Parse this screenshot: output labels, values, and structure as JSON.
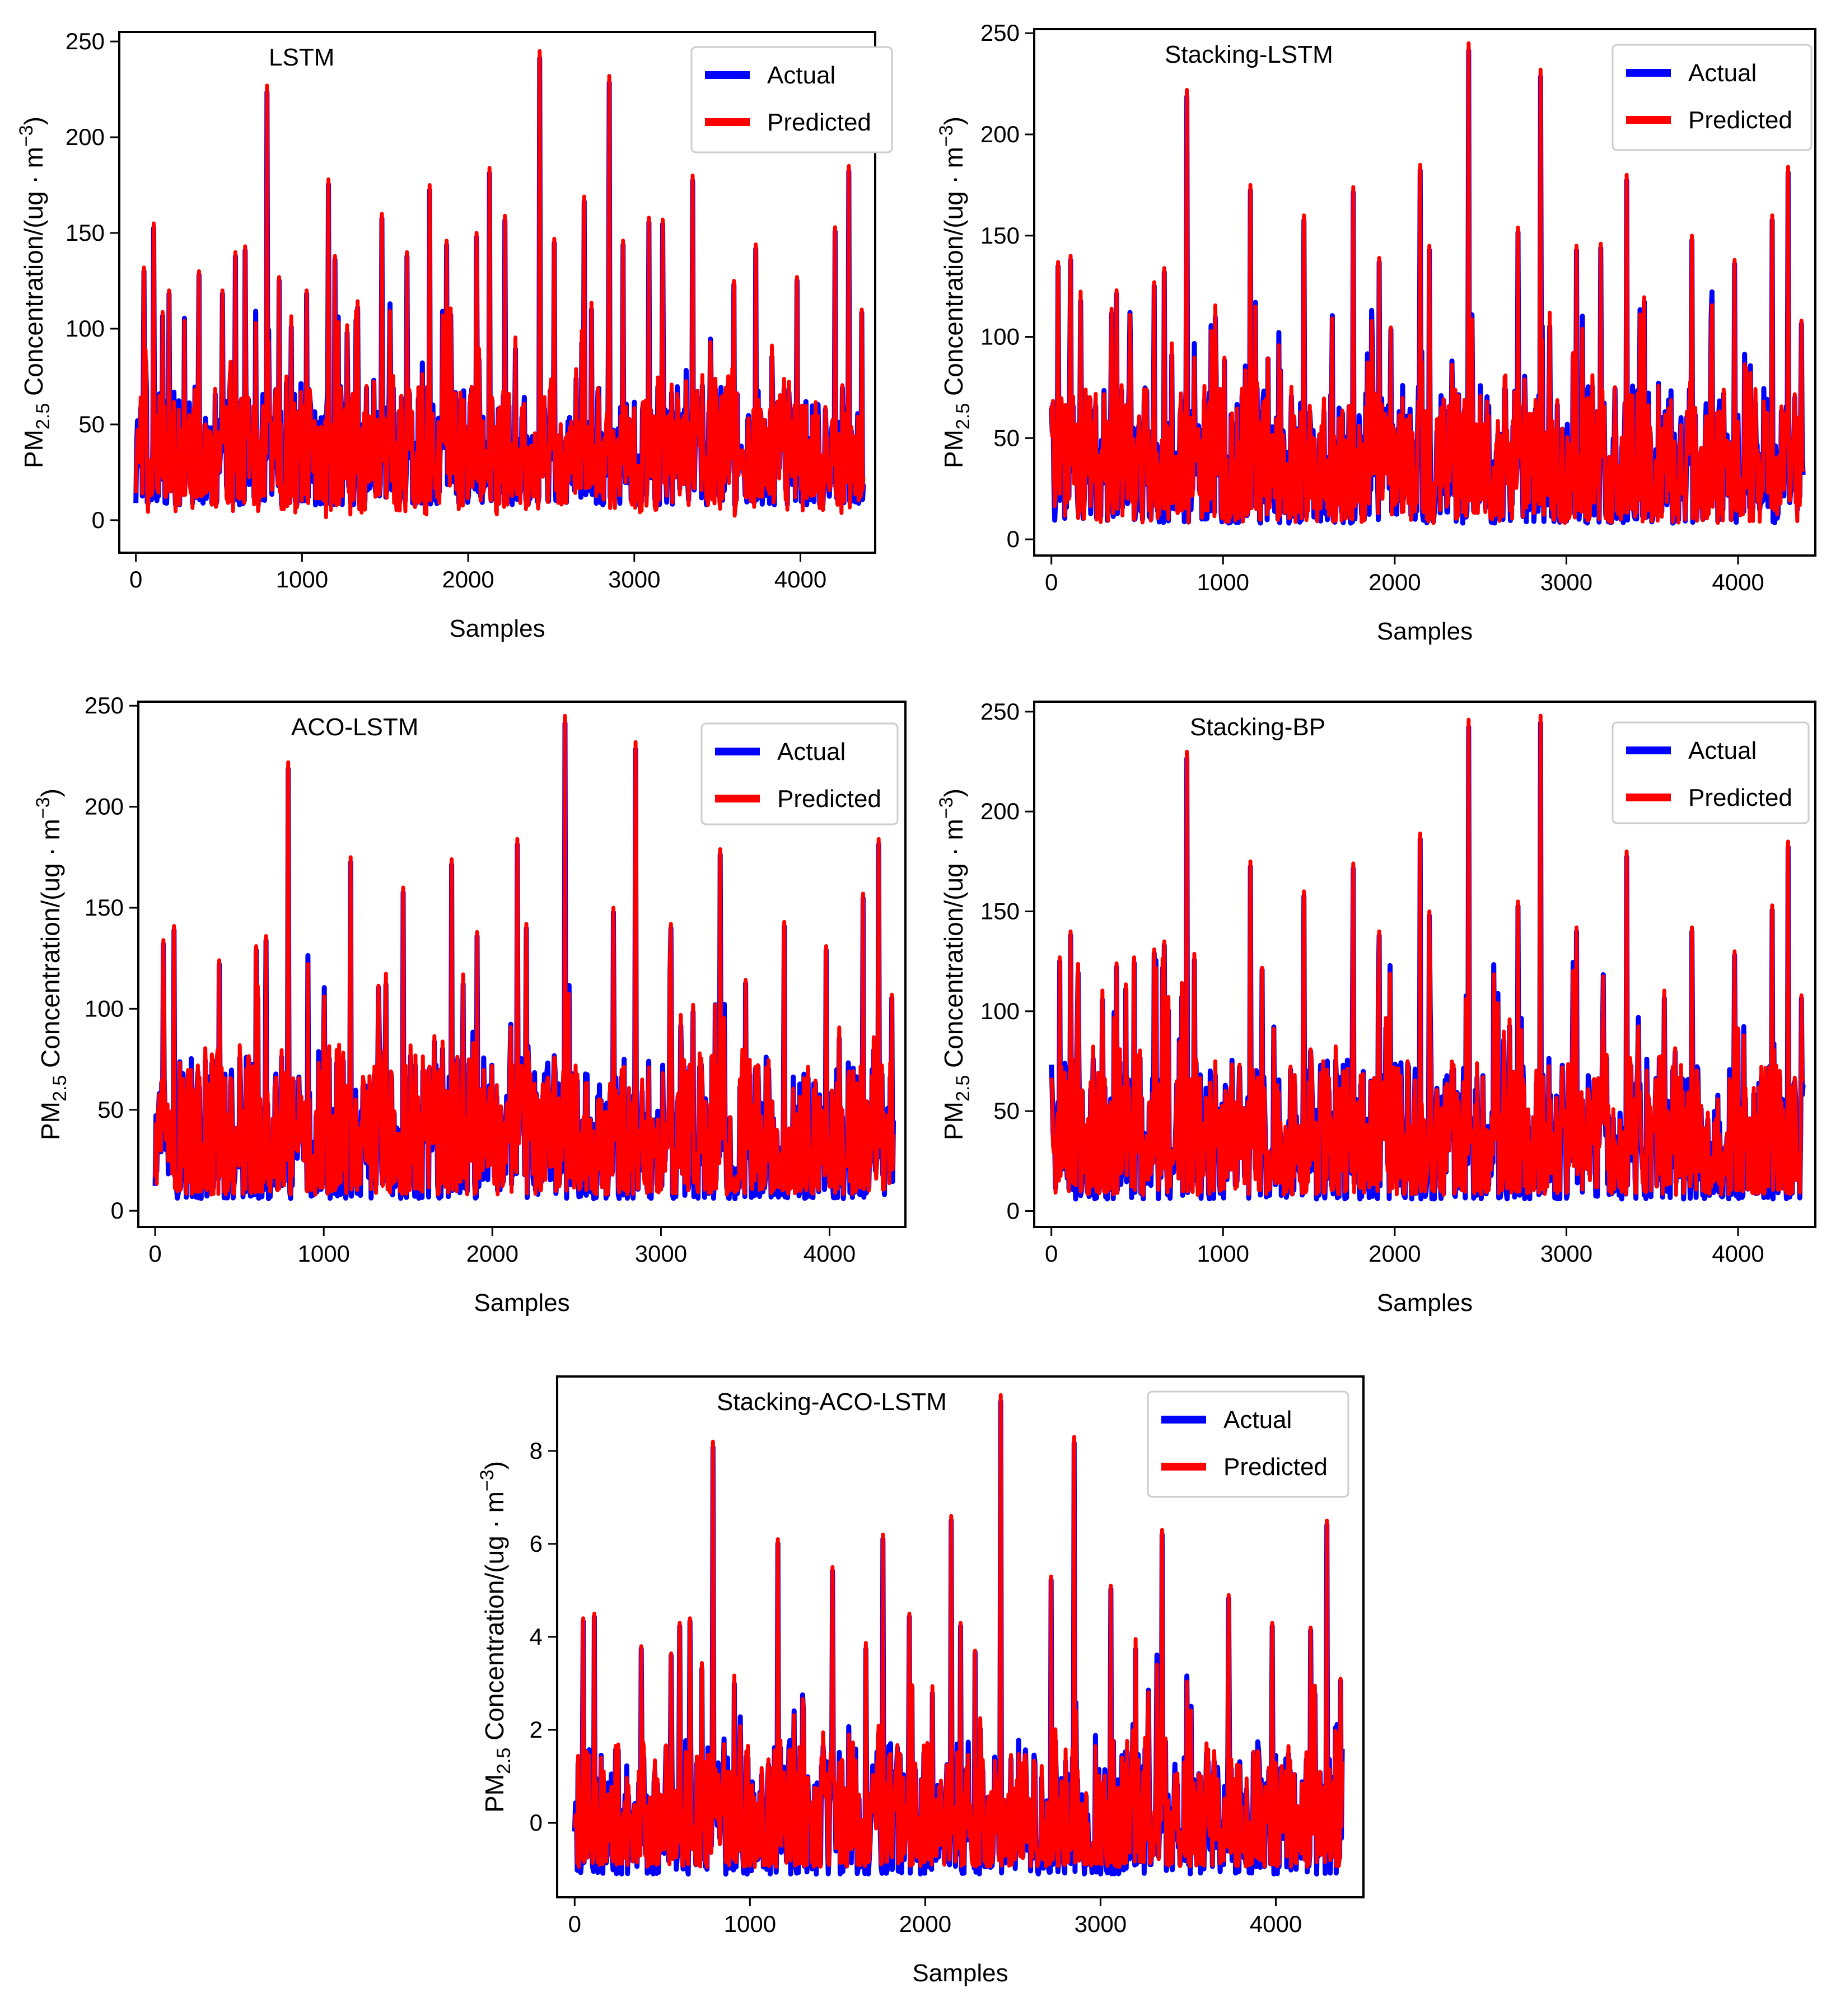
{
  "figure": {
    "xlabel": "Samples",
    "ylabel_prefix": "PM",
    "ylabel_subscript": "2.5",
    "ylabel_middle": " Concentration/(ug · m",
    "ylabel_superscript": "−3",
    "ylabel_suffix": ")"
  },
  "colors": {
    "actual": "#0000ff",
    "predicted": "#ff0000"
  },
  "chart_data": [
    {
      "type": "line",
      "title": "LSTM",
      "xlabel": "Samples",
      "ylabel": "PM2.5 Concentration/(ug · m−3)",
      "xlim": [
        -100,
        4450
      ],
      "ylim": [
        -17,
        255
      ],
      "xticks": [
        0,
        1000,
        2000,
        3000,
        4000
      ],
      "yticks": [
        0,
        50,
        100,
        150,
        200,
        250
      ],
      "legend": [
        "Actual",
        "Predicted"
      ],
      "legend_loc": "top-right",
      "n_samples": 4380,
      "baseline": {
        "low": 8,
        "mid": 30,
        "high": 60
      },
      "pred_low": 0,
      "peaks": [
        [
          50,
          132
        ],
        [
          105,
          155
        ],
        [
          200,
          120
        ],
        [
          380,
          130
        ],
        [
          520,
          120
        ],
        [
          600,
          140
        ],
        [
          660,
          143
        ],
        [
          790,
          227
        ],
        [
          860,
          127
        ],
        [
          1030,
          120
        ],
        [
          1160,
          178
        ],
        [
          1200,
          138
        ],
        [
          1480,
          160
        ],
        [
          1630,
          140
        ],
        [
          1770,
          175
        ],
        [
          1870,
          146
        ],
        [
          2050,
          150
        ],
        [
          2130,
          184
        ],
        [
          2220,
          159
        ],
        [
          2430,
          245
        ],
        [
          2520,
          147
        ],
        [
          2700,
          169
        ],
        [
          2850,
          232
        ],
        [
          2930,
          146
        ],
        [
          3090,
          158
        ],
        [
          3170,
          157
        ],
        [
          3350,
          180
        ],
        [
          3600,
          125
        ],
        [
          3730,
          144
        ],
        [
          3980,
          127
        ],
        [
          4210,
          153
        ],
        [
          4290,
          185
        ],
        [
          4370,
          110
        ]
      ],
      "series": [
        {
          "name": "Actual",
          "values_summary": "hourly PM2.5 observations, range approx 3 to 245"
        },
        {
          "name": "Predicted",
          "values_summary": "model predictions closely tracking actual, range approx -5 to 245"
        }
      ]
    },
    {
      "type": "line",
      "title": "Stacking-LSTM",
      "xlabel": "Samples",
      "ylabel": "PM2.5 Concentration/(ug · m−3)",
      "xlim": [
        -100,
        4450
      ],
      "ylim": [
        -8,
        252
      ],
      "xticks": [
        0,
        1000,
        2000,
        3000,
        4000
      ],
      "yticks": [
        0,
        50,
        100,
        150,
        200,
        250
      ],
      "legend": [
        "Actual",
        "Predicted"
      ],
      "legend_loc": "top-right",
      "n_samples": 4380,
      "baseline": {
        "low": 8,
        "mid": 32,
        "high": 65
      },
      "pred_low": 8,
      "peaks": [
        [
          40,
          137
        ],
        [
          110,
          140
        ],
        [
          380,
          123
        ],
        [
          600,
          127
        ],
        [
          660,
          134
        ],
        [
          790,
          222
        ],
        [
          1160,
          175
        ],
        [
          1470,
          160
        ],
        [
          1760,
          174
        ],
        [
          1910,
          139
        ],
        [
          2150,
          185
        ],
        [
          2200,
          145
        ],
        [
          2430,
          245
        ],
        [
          2720,
          154
        ],
        [
          2850,
          232
        ],
        [
          3060,
          145
        ],
        [
          3200,
          146
        ],
        [
          3350,
          180
        ],
        [
          3730,
          150
        ],
        [
          3980,
          138
        ],
        [
          4200,
          160
        ],
        [
          4290,
          184
        ],
        [
          4370,
          108
        ]
      ],
      "series": [
        {
          "name": "Actual",
          "values_summary": "hourly PM2.5 observations, range approx 3 to 245"
        },
        {
          "name": "Predicted",
          "values_summary": "model predictions closely tracking actual"
        }
      ]
    },
    {
      "type": "line",
      "title": "ACO-LSTM",
      "xlabel": "Samples",
      "ylabel": "PM2.5 Concentration/(ug · m−3)",
      "xlim": [
        -100,
        4450
      ],
      "ylim": [
        -8,
        252
      ],
      "xticks": [
        0,
        1000,
        2000,
        3000,
        4000
      ],
      "yticks": [
        0,
        50,
        100,
        150,
        200,
        250
      ],
      "legend": [
        "Actual",
        "Predicted"
      ],
      "legend_loc": "top-right",
      "n_samples": 4380,
      "baseline": {
        "low": 6,
        "mid": 32,
        "high": 65
      },
      "pred_low": 8,
      "peaks": [
        [
          50,
          134
        ],
        [
          110,
          141
        ],
        [
          380,
          124
        ],
        [
          600,
          131
        ],
        [
          660,
          136
        ],
        [
          790,
          222
        ],
        [
          1160,
          175
        ],
        [
          1470,
          160
        ],
        [
          1760,
          174
        ],
        [
          1910,
          138
        ],
        [
          2150,
          184
        ],
        [
          2200,
          142
        ],
        [
          2430,
          245
        ],
        [
          2720,
          150
        ],
        [
          2850,
          232
        ],
        [
          3060,
          142
        ],
        [
          3350,
          179
        ],
        [
          3730,
          143
        ],
        [
          3980,
          131
        ],
        [
          4200,
          157
        ],
        [
          4290,
          184
        ],
        [
          4370,
          107
        ]
      ],
      "series": [
        {
          "name": "Actual",
          "values_summary": "hourly PM2.5 observations, range approx 3 to 245"
        },
        {
          "name": "Predicted",
          "values_summary": "model predictions closely tracking actual"
        }
      ]
    },
    {
      "type": "line",
      "title": "Stacking-BP",
      "xlabel": "Samples",
      "ylabel": "PM2.5 Concentration/(ug · m−3)",
      "xlim": [
        -100,
        4450
      ],
      "ylim": [
        -8,
        255
      ],
      "xticks": [
        0,
        1000,
        2000,
        3000,
        4000
      ],
      "yticks": [
        0,
        50,
        100,
        150,
        200,
        250
      ],
      "legend": [
        "Actual",
        "Predicted"
      ],
      "legend_loc": "top-right",
      "n_samples": 4380,
      "baseline": {
        "low": 6,
        "mid": 32,
        "high": 65
      },
      "pred_low": 8,
      "peaks": [
        [
          50,
          127
        ],
        [
          110,
          140
        ],
        [
          380,
          124
        ],
        [
          600,
          131
        ],
        [
          660,
          135
        ],
        [
          790,
          230
        ],
        [
          1160,
          175
        ],
        [
          1470,
          160
        ],
        [
          1760,
          174
        ],
        [
          1910,
          140
        ],
        [
          2150,
          189
        ],
        [
          2200,
          150
        ],
        [
          2430,
          246
        ],
        [
          2720,
          155
        ],
        [
          2850,
          248
        ],
        [
          3060,
          142
        ],
        [
          3350,
          180
        ],
        [
          3730,
          142
        ],
        [
          3980,
          130
        ],
        [
          4200,
          153
        ],
        [
          4290,
          185
        ],
        [
          4370,
          108
        ]
      ],
      "series": [
        {
          "name": "Actual",
          "values_summary": "hourly PM2.5 observations, range approx 3 to 245"
        },
        {
          "name": "Predicted",
          "values_summary": "model predictions closely tracking actual, range approx 0 to 248"
        }
      ]
    },
    {
      "type": "line",
      "title": "Stacking-ACO-LSTM",
      "xlabel": "Samples",
      "ylabel": "PM2.5 Concentration/(ug · m−3)",
      "xlim": [
        -100,
        4500
      ],
      "ylim": [
        -1.6,
        9.6
      ],
      "xticks": [
        0,
        1000,
        2000,
        3000,
        4000
      ],
      "yticks": [
        0,
        2,
        4,
        6,
        8
      ],
      "legend": [
        "Actual",
        "Predicted"
      ],
      "legend_loc": "top-right",
      "n_samples": 4380,
      "baseline": {
        "low": -1.1,
        "mid": -0.1,
        "high": 1.3
      },
      "pred_low": -0.95,
      "peaks": [
        [
          50,
          4.4
        ],
        [
          110,
          4.5
        ],
        [
          380,
          3.8
        ],
        [
          600,
          4.3
        ],
        [
          660,
          4.4
        ],
        [
          790,
          8.2
        ],
        [
          1160,
          6.1
        ],
        [
          1470,
          5.5
        ],
        [
          1760,
          6.2
        ],
        [
          1910,
          4.5
        ],
        [
          2150,
          6.6
        ],
        [
          2200,
          4.3
        ],
        [
          2430,
          9.2
        ],
        [
          2720,
          5.3
        ],
        [
          2850,
          8.3
        ],
        [
          3060,
          5.1
        ],
        [
          3350,
          6.3
        ],
        [
          3730,
          4.9
        ],
        [
          3980,
          4.3
        ],
        [
          4200,
          4.2
        ],
        [
          4290,
          6.5
        ],
        [
          4370,
          3.1
        ]
      ],
      "series": [
        {
          "name": "Actual",
          "values_summary": "normalized PM2.5 observations, range approx -1.2 to 9.2"
        },
        {
          "name": "Predicted",
          "values_summary": "model predictions closely tracking actual"
        }
      ]
    }
  ]
}
